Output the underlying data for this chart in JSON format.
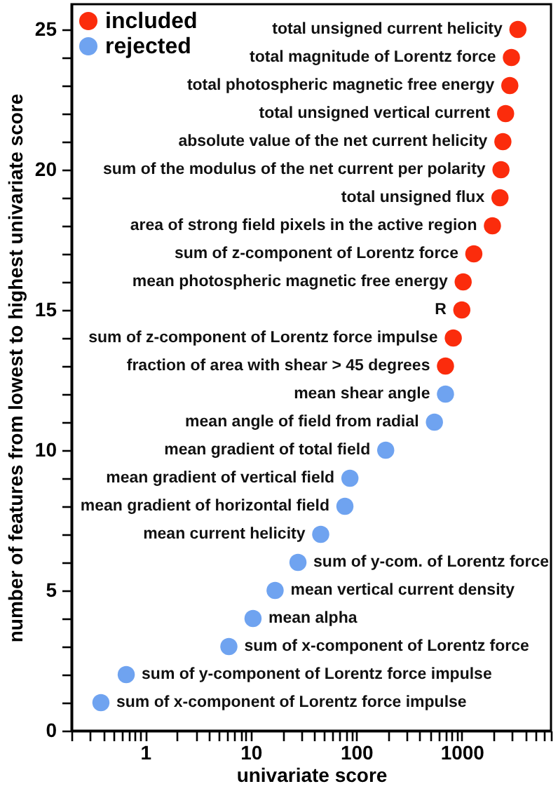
{
  "chart_data": {
    "type": "scatter",
    "xlabel": "univariate score",
    "ylabel": "number of features from lowest to highest univariate score",
    "log": "x",
    "xlim": [
      0.2,
      7000
    ],
    "ylim": [
      0,
      25.9
    ],
    "xticks": [
      {
        "value": 0.2,
        "label": null
      },
      {
        "value": 0.3,
        "label": null
      },
      {
        "value": 0.4,
        "label": null
      },
      {
        "value": 0.5,
        "label": null
      },
      {
        "value": 0.6,
        "label": null
      },
      {
        "value": 0.7,
        "label": null
      },
      {
        "value": 0.8,
        "label": null
      },
      {
        "value": 0.9,
        "label": null
      },
      1,
      {
        "value": 2,
        "label": null
      },
      {
        "value": 3,
        "label": null
      },
      {
        "value": 4,
        "label": null
      },
      {
        "value": 5,
        "label": null
      },
      {
        "value": 6,
        "label": null
      },
      {
        "value": 7,
        "label": null
      },
      {
        "value": 8,
        "label": null
      },
      {
        "value": 9,
        "label": null
      },
      10,
      {
        "value": 20,
        "label": null
      },
      {
        "value": 30,
        "label": null
      },
      {
        "value": 40,
        "label": null
      },
      {
        "value": 50,
        "label": null
      },
      {
        "value": 60,
        "label": null
      },
      {
        "value": 70,
        "label": null
      },
      {
        "value": 80,
        "label": null
      },
      {
        "value": 90,
        "label": null
      },
      100,
      {
        "value": 200,
        "label": null
      },
      {
        "value": 300,
        "label": null
      },
      {
        "value": 400,
        "label": null
      },
      {
        "value": 500,
        "label": null
      },
      {
        "value": 600,
        "label": null
      },
      {
        "value": 700,
        "label": null
      },
      {
        "value": 800,
        "label": null
      },
      {
        "value": 900,
        "label": null
      },
      1000,
      {
        "value": 2000,
        "label": null
      },
      {
        "value": 3000,
        "label": null
      },
      {
        "value": 4000,
        "label": null
      },
      {
        "value": 5000,
        "label": null
      },
      {
        "value": 6000,
        "label": null
      },
      {
        "value": 7000,
        "label": null
      }
    ],
    "yticks": [
      0,
      {
        "value": 1,
        "label": null
      },
      {
        "value": 2,
        "label": null
      },
      {
        "value": 3,
        "label": null
      },
      {
        "value": 4,
        "label": null
      },
      5,
      {
        "value": 6,
        "label": null
      },
      {
        "value": 7,
        "label": null
      },
      {
        "value": 8,
        "label": null
      },
      {
        "value": 9,
        "label": null
      },
      10,
      {
        "value": 11,
        "label": null
      },
      {
        "value": 12,
        "label": null
      },
      {
        "value": 13,
        "label": null
      },
      {
        "value": 14,
        "label": null
      },
      15,
      {
        "value": 16,
        "label": null
      },
      {
        "value": 17,
        "label": null
      },
      {
        "value": 18,
        "label": null
      },
      {
        "value": 19,
        "label": null
      },
      20,
      {
        "value": 21,
        "label": null
      },
      {
        "value": 22,
        "label": null
      },
      {
        "value": 23,
        "label": null
      },
      {
        "value": 24,
        "label": null
      },
      25
    ],
    "grid": false,
    "legend": "top left",
    "marker": "circle",
    "series": [
      {
        "name": "included",
        "color": "#fb2c0c",
        "x": [
          700,
          830,
          1000,
          1030,
          1300,
          1950,
          2300,
          2350,
          2450,
          2600,
          2850,
          2950,
          3400
        ],
        "values": [
          13,
          14,
          15,
          16,
          17,
          18,
          19,
          20,
          21,
          22,
          23,
          24,
          25
        ]
      },
      {
        "name": "rejected",
        "color": "#6fa3f0",
        "x": [
          0.38,
          0.66,
          6.2,
          10.5,
          17,
          28,
          46,
          78,
          87,
          190,
          550,
          700
        ],
        "values": [
          1,
          2,
          3,
          4,
          5,
          6,
          7,
          8,
          9,
          10,
          11,
          12
        ]
      }
    ],
    "annotations": [
      {
        "text": "total unsigned current helicity",
        "x": 3400,
        "y": 25
      },
      {
        "text": "total magnitude of Lorentz force",
        "x": 2950,
        "y": 24
      },
      {
        "text": "total photospheric magnetic free energy",
        "x": 2850,
        "y": 23
      },
      {
        "text": "total unsigned vertical current",
        "x": 2600,
        "y": 22
      },
      {
        "text": "absolute value of the net current helicity",
        "x": 2450,
        "y": 21
      },
      {
        "text": "sum of the modulus of the net current per polarity",
        "x": 2350,
        "y": 20
      },
      {
        "text": "total unsigned flux",
        "x": 2300,
        "y": 19
      },
      {
        "text": "area of strong field pixels in the active region",
        "x": 1950,
        "y": 18
      },
      {
        "text": "sum of z-component of Lorentz force",
        "x": 1300,
        "y": 17
      },
      {
        "text": "mean photospheric magnetic free energy",
        "x": 1030,
        "y": 16
      },
      {
        "text": "R",
        "x": 1000,
        "y": 15
      },
      {
        "text": "sum of z-component of Lorentz force impulse",
        "x": 830,
        "y": 14
      },
      {
        "text": "fraction of area with shear > 45 degrees",
        "x": 700,
        "y": 13
      },
      {
        "text": "mean shear angle",
        "x": 700,
        "y": 12
      },
      {
        "text": "mean angle of field from radial",
        "x": 550,
        "y": 11
      },
      {
        "text": "mean gradient of total field",
        "x": 190,
        "y": 10
      },
      {
        "text": "mean gradient of vertical field",
        "x": 87,
        "y": 9
      },
      {
        "text": "mean gradient of horizontal field",
        "x": 78,
        "y": 8
      },
      {
        "text": "mean current helicity",
        "x": 46,
        "y": 7
      },
      {
        "text": "sum of y-com. of Lorentz force",
        "x": 28,
        "y": 6
      },
      {
        "text": "mean vertical current density",
        "x": 17,
        "y": 5
      },
      {
        "text": "mean alpha",
        "x": 10.5,
        "y": 4
      },
      {
        "text": "sum of x-component of Lorentz force",
        "x": 6.2,
        "y": 3
      },
      {
        "text": "sum of y-component of Lorentz force impulse",
        "x": 0.66,
        "y": 2
      },
      {
        "text": "sum of x-component of Lorentz force impulse",
        "x": 0.38,
        "y": 1
      }
    ]
  }
}
